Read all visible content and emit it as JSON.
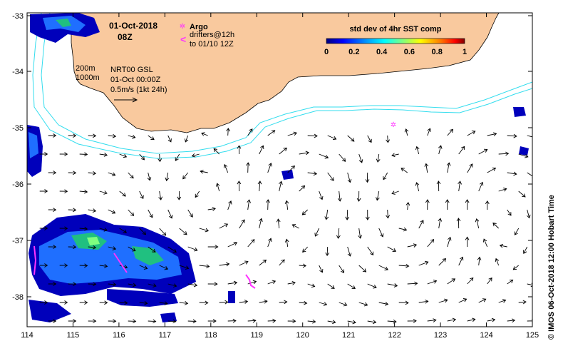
{
  "map": {
    "date_line": "01-Oct-2018",
    "time_line": "08Z",
    "legend": {
      "argo_symbol": "✲",
      "argo_label": "Argo",
      "drifter_symbol": "<",
      "drifter_line1": "drifters@12h",
      "drifter_line2": "to 01/10 12Z"
    },
    "contours": {
      "c200": "200m",
      "c1000": "1000m"
    },
    "product": {
      "name": "NRT00 GSL",
      "time": "01-Oct 00:00Z",
      "scale": "0.5m/s (1kt 24h)"
    },
    "colorbar": {
      "title": "std dev of 4hr SST comp",
      "ticks": [
        "0",
        "0.2",
        "0.4",
        "0.6",
        "0.8",
        "1"
      ],
      "colors": [
        "#00007f",
        "#0000ff",
        "#007fff",
        "#00ffff",
        "#7fff7f",
        "#ffff00",
        "#ff7f00",
        "#ff0000",
        "#7f0000"
      ]
    },
    "x_ticks": [
      "114",
      "115",
      "116",
      "117",
      "118",
      "119",
      "120",
      "121",
      "122",
      "123",
      "124",
      "125"
    ],
    "y_ticks": [
      "-33",
      "-34",
      "-35",
      "-36",
      "-37",
      "-38"
    ],
    "credit": "© IMOS 06-Oct-2018 12:00 Hobart Time",
    "colors": {
      "land": "#f9c99e",
      "isobath": "#33ddee",
      "argo": "#ff33ff",
      "arrow": "#000000"
    }
  }
}
